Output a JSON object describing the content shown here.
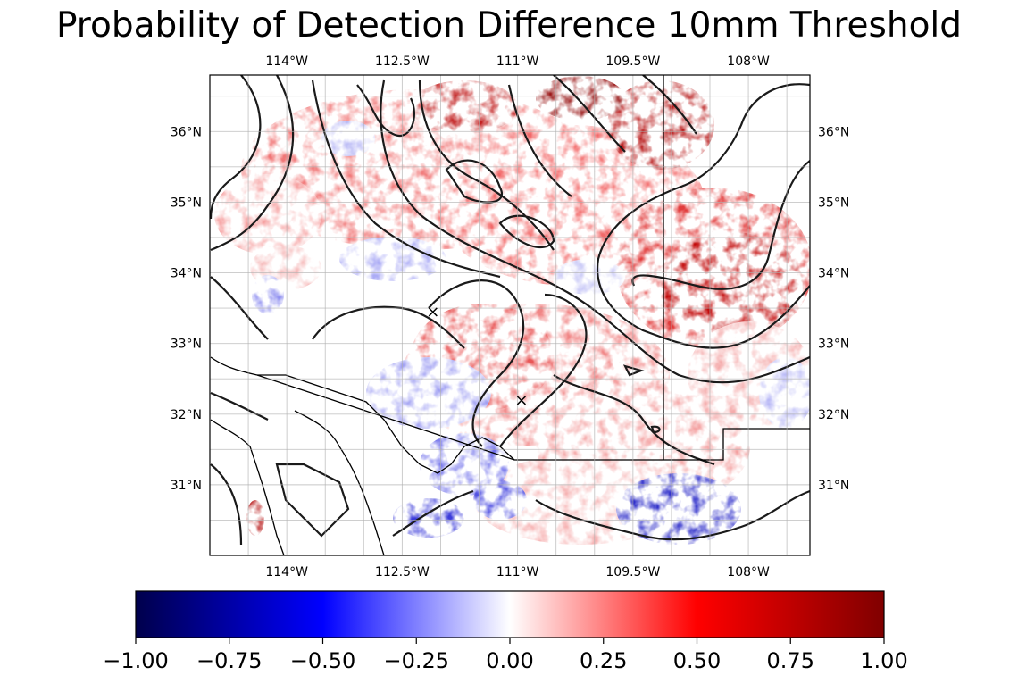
{
  "title": "Probability of Detection Difference 10mm Threshold",
  "map": {
    "projection": "PlateCarree",
    "extent": {
      "lon_min": -115.0,
      "lon_max": -107.2,
      "lat_min": 30.0,
      "lat_max": 36.8
    },
    "lon_ticks": [
      {
        "value": -114.0,
        "label": "114°W"
      },
      {
        "value": -112.5,
        "label": "112.5°W"
      },
      {
        "value": -111.0,
        "label": "111°W"
      },
      {
        "value": -109.5,
        "label": "109.5°W"
      },
      {
        "value": -108.0,
        "label": "108°W"
      }
    ],
    "lat_ticks": [
      {
        "value": 31,
        "label": "31°N"
      },
      {
        "value": 32,
        "label": "32°N"
      },
      {
        "value": 33,
        "label": "33°N"
      },
      {
        "value": 34,
        "label": "34°N"
      },
      {
        "value": 35,
        "label": "35°N"
      },
      {
        "value": 36,
        "label": "36°N"
      }
    ],
    "gridlines": true,
    "colormap": "seismic",
    "colors": {
      "negative_extreme": "#00004c",
      "negative": "#0000ff",
      "zero": "#ffffff",
      "positive": "#ff0000",
      "positive_extreme": "#800000",
      "contour": "#000000",
      "grid": "#b0b0b0",
      "border": "#000000"
    },
    "markers": [
      {
        "name": "x-marker-north",
        "lon": -112.1,
        "lat": 33.45,
        "symbol": "×"
      },
      {
        "name": "x-marker-south",
        "lon": -110.95,
        "lat": 32.2,
        "symbol": "×"
      }
    ]
  },
  "colorbar": {
    "vmin": -1.0,
    "vmax": 1.0,
    "ticks": [
      {
        "value": -1.0,
        "label": "−1.00"
      },
      {
        "value": -0.75,
        "label": "−0.75"
      },
      {
        "value": -0.5,
        "label": "−0.50"
      },
      {
        "value": -0.25,
        "label": "−0.25"
      },
      {
        "value": 0.0,
        "label": "0.00"
      },
      {
        "value": 0.25,
        "label": "0.25"
      },
      {
        "value": 0.5,
        "label": "0.50"
      },
      {
        "value": 0.75,
        "label": "0.75"
      },
      {
        "value": 1.0,
        "label": "1.00"
      }
    ]
  }
}
